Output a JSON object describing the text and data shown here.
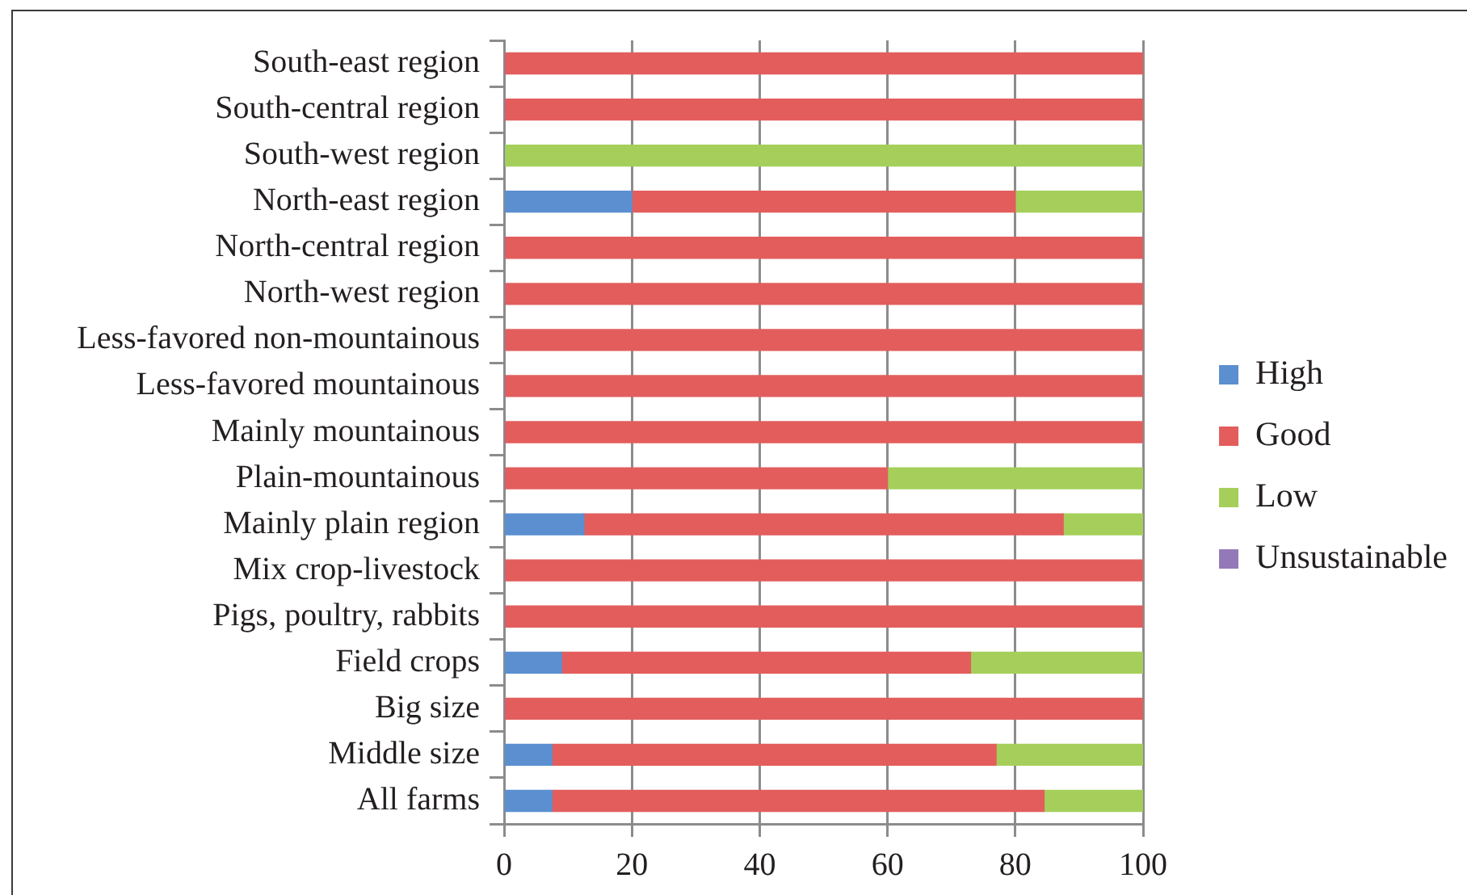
{
  "chart_data": {
    "type": "bar",
    "orientation": "horizontal",
    "stacked": true,
    "categories": [
      "South-east region",
      "South-central region",
      "South-west region",
      "North-east region",
      "North-central region",
      "North-west region",
      "Less-favored non-mountainous",
      "Less-favored mountainous",
      "Mainly mountainous",
      "Plain-mountainous",
      "Mainly plain region",
      "Mix crop-livestock",
      "Pigs, poultry, rabbits",
      "Field crops",
      "Big size",
      "Middle size",
      "All farms"
    ],
    "series": [
      {
        "name": "High",
        "color": "#5b8fd0",
        "values": [
          0,
          0,
          0,
          20,
          0,
          0,
          0,
          0,
          0,
          0,
          12.5,
          0,
          0,
          9,
          0,
          7.5,
          7.5
        ]
      },
      {
        "name": "Good",
        "color": "#e35d5d",
        "values": [
          100,
          100,
          0,
          60,
          100,
          100,
          100,
          100,
          100,
          60,
          75,
          100,
          100,
          64,
          100,
          69.5,
          77
        ]
      },
      {
        "name": "Low",
        "color": "#a5cf5a",
        "values": [
          0,
          0,
          100,
          20,
          0,
          0,
          0,
          0,
          0,
          40,
          12.5,
          0,
          0,
          27,
          0,
          23,
          15.5
        ]
      },
      {
        "name": "Unsustainable",
        "color": "#9479b8",
        "values": [
          0,
          0,
          0,
          0,
          0,
          0,
          0,
          0,
          0,
          0,
          0,
          0,
          0,
          0,
          0,
          0,
          0
        ]
      }
    ],
    "xlim": [
      0,
      100
    ],
    "xticks": [
      0,
      20,
      40,
      60,
      80,
      100
    ],
    "grid": "x",
    "legend": "right"
  }
}
